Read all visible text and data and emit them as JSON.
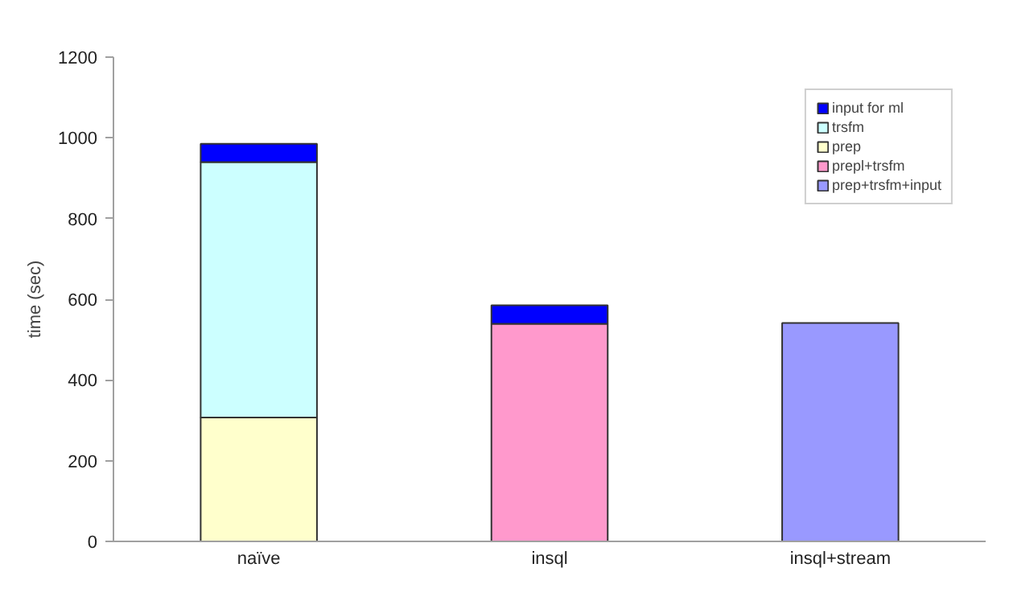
{
  "chart_data": {
    "type": "bar",
    "stacked": true,
    "ylabel": "time (sec)",
    "categories": [
      "naïve",
      "insql",
      "insql+stream"
    ],
    "series": [
      {
        "name": "prep+trsfm+input",
        "color": "#9999ff",
        "values": [
          null,
          null,
          541
        ]
      },
      {
        "name": "prepl+trsfm",
        "color": "#ff99cc",
        "values": [
          null,
          539,
          null
        ]
      },
      {
        "name": "prep",
        "color": "#ffffcc",
        "values": [
          307,
          null,
          null
        ]
      },
      {
        "name": "trsfm",
        "color": "#ccffff",
        "values": [
          633,
          null,
          null
        ]
      },
      {
        "name": "input for ml",
        "color": "#0000ff",
        "values": [
          45,
          46,
          null
        ]
      }
    ],
    "ylim": [
      0,
      1200
    ],
    "yticks": [
      0,
      200,
      400,
      600,
      800,
      1000,
      1200
    ],
    "grid": false,
    "legend": "top right"
  }
}
